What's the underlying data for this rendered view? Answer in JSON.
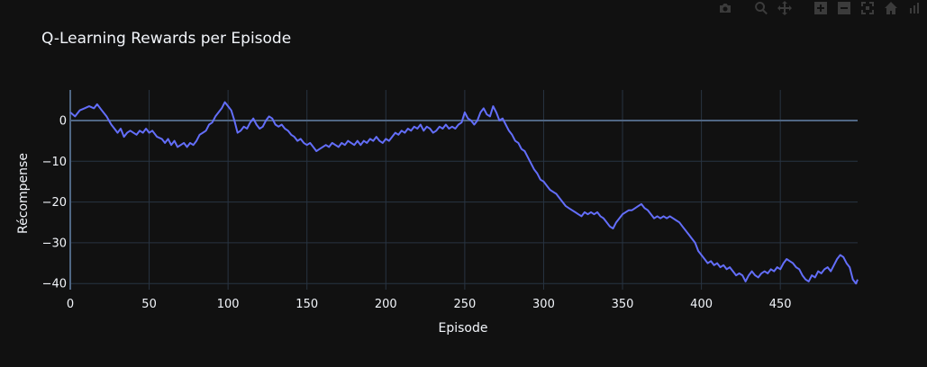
{
  "colors": {
    "background": "#111111",
    "grid": "#283442",
    "zeroline": "#506784",
    "line": "#636efa",
    "text": "#f2f5fa",
    "modebar": "#3b3b3b"
  },
  "modebar": {
    "buttons": [
      "camera-icon",
      "zoom-icon",
      "pan-icon",
      "zoom-in-icon",
      "zoom-out-icon",
      "autoscale-icon",
      "home-icon",
      "plotly-logo-icon"
    ]
  },
  "chart_data": {
    "type": "line",
    "title": "Q-Learning Rewards per Episode",
    "xlabel": "Episode",
    "ylabel": "Récompense",
    "xlim": [
      0,
      499
    ],
    "ylim": [
      -41.5,
      7.5
    ],
    "xticks": [
      0,
      50,
      100,
      150,
      200,
      250,
      300,
      350,
      400,
      450
    ],
    "xtick_labels": [
      "0",
      "50",
      "100",
      "150",
      "200",
      "250",
      "300",
      "350",
      "400",
      "450"
    ],
    "yticks": [
      0,
      -10,
      -20,
      -30,
      -40
    ],
    "ytick_labels": [
      "0",
      "−10",
      "−20",
      "−30",
      "−40"
    ],
    "grid": true,
    "legend": "none",
    "series": [
      {
        "points": [
          [
            0,
            2
          ],
          [
            3,
            1
          ],
          [
            6,
            2.5
          ],
          [
            9,
            3
          ],
          [
            12,
            3.5
          ],
          [
            15,
            3
          ],
          [
            17,
            4
          ],
          [
            20,
            2.5
          ],
          [
            23,
            1
          ],
          [
            26,
            -1
          ],
          [
            28,
            -2
          ],
          [
            30,
            -3
          ],
          [
            32,
            -2
          ],
          [
            34,
            -4
          ],
          [
            36,
            -3
          ],
          [
            38,
            -2.5
          ],
          [
            40,
            -3
          ],
          [
            42,
            -3.5
          ],
          [
            44,
            -2.5
          ],
          [
            46,
            -3
          ],
          [
            48,
            -2
          ],
          [
            50,
            -3
          ],
          [
            52,
            -2.5
          ],
          [
            55,
            -4
          ],
          [
            58,
            -4.5
          ],
          [
            60,
            -5.5
          ],
          [
            62,
            -4.5
          ],
          [
            64,
            -6
          ],
          [
            66,
            -5
          ],
          [
            68,
            -6.5
          ],
          [
            70,
            -6
          ],
          [
            72,
            -5.5
          ],
          [
            74,
            -6.5
          ],
          [
            76,
            -5.5
          ],
          [
            78,
            -6
          ],
          [
            80,
            -5
          ],
          [
            82,
            -3.5
          ],
          [
            84,
            -3
          ],
          [
            86,
            -2.5
          ],
          [
            88,
            -1
          ],
          [
            90,
            -0.5
          ],
          [
            92,
            1
          ],
          [
            94,
            2
          ],
          [
            96,
            3
          ],
          [
            98,
            4.5
          ],
          [
            100,
            3.5
          ],
          [
            102,
            2.5
          ],
          [
            104,
            0
          ],
          [
            106,
            -3
          ],
          [
            108,
            -2.5
          ],
          [
            110,
            -1.5
          ],
          [
            112,
            -2
          ],
          [
            114,
            -0.5
          ],
          [
            116,
            0.5
          ],
          [
            118,
            -1
          ],
          [
            120,
            -2
          ],
          [
            122,
            -1.5
          ],
          [
            124,
            0
          ],
          [
            126,
            1
          ],
          [
            128,
            0.5
          ],
          [
            130,
            -1
          ],
          [
            132,
            -1.5
          ],
          [
            134,
            -1
          ],
          [
            136,
            -2
          ],
          [
            138,
            -2.5
          ],
          [
            140,
            -3.5
          ],
          [
            142,
            -4
          ],
          [
            144,
            -5
          ],
          [
            146,
            -4.5
          ],
          [
            148,
            -5.5
          ],
          [
            150,
            -6
          ],
          [
            152,
            -5.5
          ],
          [
            154,
            -6.5
          ],
          [
            156,
            -7.5
          ],
          [
            158,
            -7
          ],
          [
            160,
            -6.5
          ],
          [
            162,
            -6
          ],
          [
            164,
            -6.5
          ],
          [
            166,
            -5.5
          ],
          [
            168,
            -6
          ],
          [
            170,
            -6.5
          ],
          [
            172,
            -5.5
          ],
          [
            174,
            -6
          ],
          [
            176,
            -5
          ],
          [
            178,
            -5.5
          ],
          [
            180,
            -6
          ],
          [
            182,
            -5
          ],
          [
            184,
            -6
          ],
          [
            186,
            -5
          ],
          [
            188,
            -5.5
          ],
          [
            190,
            -4.5
          ],
          [
            192,
            -5
          ],
          [
            194,
            -4
          ],
          [
            196,
            -5
          ],
          [
            198,
            -5.5
          ],
          [
            200,
            -4.5
          ],
          [
            202,
            -5
          ],
          [
            204,
            -4
          ],
          [
            206,
            -3
          ],
          [
            208,
            -3.5
          ],
          [
            210,
            -2.5
          ],
          [
            212,
            -3
          ],
          [
            214,
            -2
          ],
          [
            216,
            -2.5
          ],
          [
            218,
            -1.5
          ],
          [
            220,
            -2
          ],
          [
            222,
            -1
          ],
          [
            224,
            -2.5
          ],
          [
            226,
            -1.5
          ],
          [
            228,
            -2
          ],
          [
            230,
            -3
          ],
          [
            232,
            -2.5
          ],
          [
            234,
            -1.5
          ],
          [
            236,
            -2
          ],
          [
            238,
            -1
          ],
          [
            240,
            -2
          ],
          [
            242,
            -1.5
          ],
          [
            244,
            -2
          ],
          [
            246,
            -1
          ],
          [
            248,
            -0.5
          ],
          [
            250,
            2
          ],
          [
            252,
            0.5
          ],
          [
            254,
            0
          ],
          [
            256,
            -1
          ],
          [
            258,
            0
          ],
          [
            260,
            2
          ],
          [
            262,
            3
          ],
          [
            264,
            1.5
          ],
          [
            266,
            1
          ],
          [
            268,
            3.5
          ],
          [
            270,
            2
          ],
          [
            272,
            0
          ],
          [
            274,
            0.5
          ],
          [
            276,
            -1
          ],
          [
            278,
            -2.5
          ],
          [
            280,
            -3.5
          ],
          [
            282,
            -5
          ],
          [
            284,
            -5.5
          ],
          [
            286,
            -7
          ],
          [
            288,
            -7.5
          ],
          [
            290,
            -9
          ],
          [
            292,
            -10.5
          ],
          [
            294,
            -12
          ],
          [
            296,
            -13
          ],
          [
            298,
            -14.5
          ],
          [
            300,
            -15
          ],
          [
            302,
            -16
          ],
          [
            304,
            -17
          ],
          [
            306,
            -17.5
          ],
          [
            308,
            -18
          ],
          [
            310,
            -19
          ],
          [
            312,
            -20
          ],
          [
            314,
            -21
          ],
          [
            316,
            -21.5
          ],
          [
            318,
            -22
          ],
          [
            320,
            -22.5
          ],
          [
            322,
            -23
          ],
          [
            324,
            -23.5
          ],
          [
            326,
            -22.5
          ],
          [
            328,
            -23
          ],
          [
            330,
            -22.5
          ],
          [
            332,
            -23
          ],
          [
            334,
            -22.5
          ],
          [
            336,
            -23.5
          ],
          [
            338,
            -24
          ],
          [
            340,
            -25
          ],
          [
            342,
            -26
          ],
          [
            344,
            -26.5
          ],
          [
            346,
            -25
          ],
          [
            348,
            -24
          ],
          [
            350,
            -23
          ],
          [
            352,
            -22.5
          ],
          [
            354,
            -22
          ],
          [
            356,
            -22
          ],
          [
            358,
            -21.5
          ],
          [
            360,
            -21
          ],
          [
            362,
            -20.5
          ],
          [
            364,
            -21.5
          ],
          [
            366,
            -22
          ],
          [
            368,
            -23
          ],
          [
            370,
            -24
          ],
          [
            372,
            -23.5
          ],
          [
            374,
            -24
          ],
          [
            376,
            -23.5
          ],
          [
            378,
            -24
          ],
          [
            380,
            -23.5
          ],
          [
            382,
            -24
          ],
          [
            384,
            -24.5
          ],
          [
            386,
            -25
          ],
          [
            388,
            -26
          ],
          [
            390,
            -27
          ],
          [
            392,
            -28
          ],
          [
            394,
            -29
          ],
          [
            396,
            -30
          ],
          [
            398,
            -32
          ],
          [
            400,
            -33
          ],
          [
            402,
            -34
          ],
          [
            404,
            -35
          ],
          [
            406,
            -34.5
          ],
          [
            408,
            -35.5
          ],
          [
            410,
            -35
          ],
          [
            412,
            -36
          ],
          [
            414,
            -35.5
          ],
          [
            416,
            -36.5
          ],
          [
            418,
            -36
          ],
          [
            420,
            -37
          ],
          [
            422,
            -38
          ],
          [
            424,
            -37.5
          ],
          [
            426,
            -38
          ],
          [
            428,
            -39.5
          ],
          [
            430,
            -38
          ],
          [
            432,
            -37
          ],
          [
            434,
            -38
          ],
          [
            436,
            -38.5
          ],
          [
            438,
            -37.5
          ],
          [
            440,
            -37
          ],
          [
            442,
            -37.5
          ],
          [
            444,
            -36.5
          ],
          [
            446,
            -37
          ],
          [
            448,
            -36
          ],
          [
            450,
            -36.5
          ],
          [
            452,
            -35
          ],
          [
            454,
            -34
          ],
          [
            456,
            -34.5
          ],
          [
            458,
            -35
          ],
          [
            460,
            -36
          ],
          [
            462,
            -36.5
          ],
          [
            464,
            -38
          ],
          [
            466,
            -39
          ],
          [
            468,
            -39.5
          ],
          [
            470,
            -38
          ],
          [
            472,
            -38.5
          ],
          [
            474,
            -37
          ],
          [
            476,
            -37.5
          ],
          [
            478,
            -36.5
          ],
          [
            480,
            -36
          ],
          [
            482,
            -37
          ],
          [
            484,
            -35.5
          ],
          [
            486,
            -34
          ],
          [
            488,
            -33
          ],
          [
            490,
            -33.5
          ],
          [
            492,
            -35
          ],
          [
            494,
            -36
          ],
          [
            496,
            -39
          ],
          [
            498,
            -40
          ],
          [
            499,
            -39
          ]
        ]
      }
    ]
  }
}
